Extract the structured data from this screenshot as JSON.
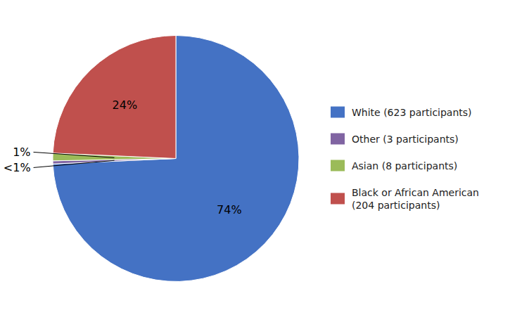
{
  "chart_data": {
    "type": "pie",
    "categories": [
      "White (623 participants)",
      "Other (3 participants)",
      "Asian (8 participants)",
      "Black or African American\n(204 participants)"
    ],
    "values": [
      74.3,
      0.4,
      1.0,
      24.3
    ],
    "value_labels": [
      "74%",
      "<1%",
      "1%",
      "24%"
    ],
    "colors": [
      "#4472C4",
      "#8064A2",
      "#9BBB59",
      "#C0504D"
    ],
    "data_labels": true,
    "legend": "right"
  }
}
